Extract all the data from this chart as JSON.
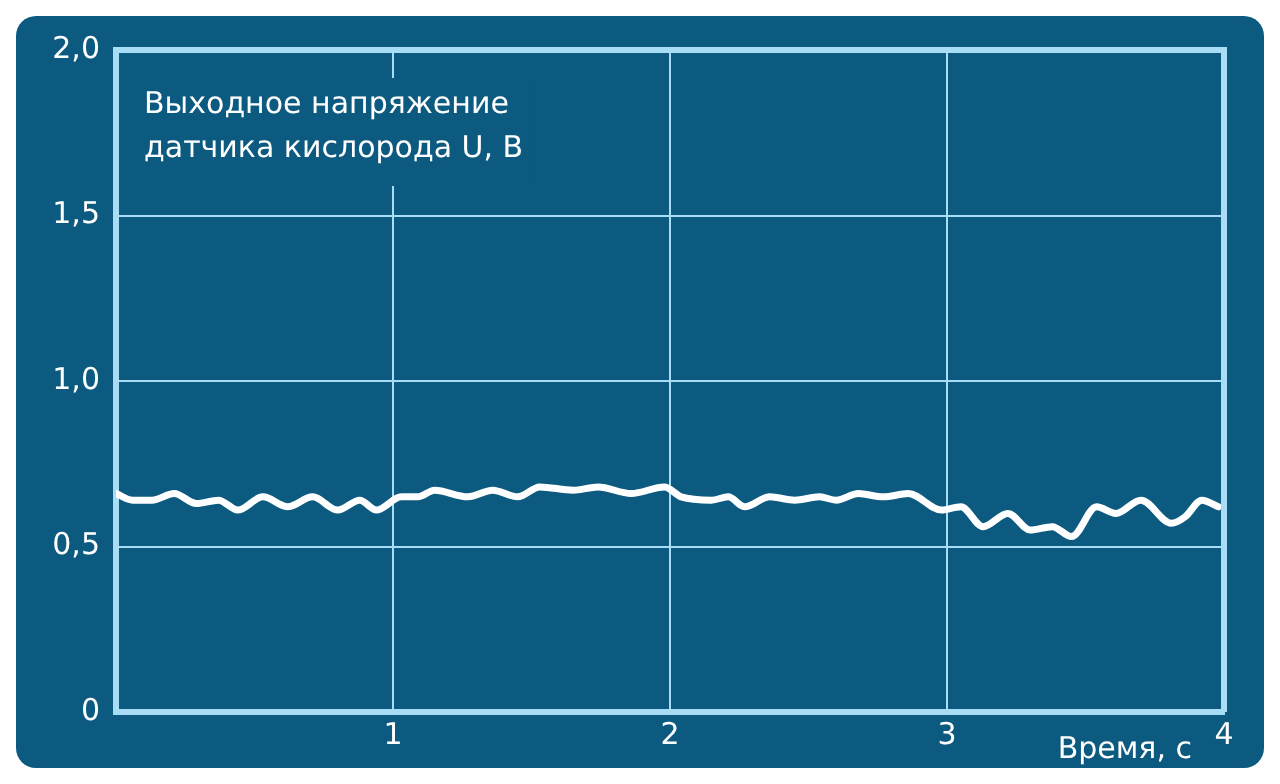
{
  "chart_data": {
    "type": "line",
    "ylabel": "Выходное напряжение датчика кислорода U, В",
    "xlabel": "Время, с",
    "x": [
      0,
      0.06,
      0.13,
      0.21,
      0.29,
      0.37,
      0.44,
      0.53,
      0.62,
      0.71,
      0.8,
      0.88,
      0.94,
      1.03,
      1.09,
      1.15,
      1.27,
      1.36,
      1.45,
      1.53,
      1.65,
      1.74,
      1.86,
      1.98,
      2.04,
      2.15,
      2.21,
      2.27,
      2.36,
      2.45,
      2.54,
      2.6,
      2.68,
      2.77,
      2.86,
      2.98,
      3.05,
      3.13,
      3.22,
      3.3,
      3.38,
      3.45,
      3.54,
      3.61,
      3.7,
      3.81,
      3.86,
      3.92,
      3.98
    ],
    "series": [
      {
        "color": "#ffffff",
        "values": [
          0.66,
          0.64,
          0.64,
          0.66,
          0.63,
          0.64,
          0.61,
          0.65,
          0.62,
          0.65,
          0.61,
          0.64,
          0.61,
          0.65,
          0.65,
          0.67,
          0.65,
          0.67,
          0.65,
          0.68,
          0.67,
          0.68,
          0.66,
          0.68,
          0.65,
          0.64,
          0.65,
          0.62,
          0.65,
          0.64,
          0.65,
          0.64,
          0.66,
          0.65,
          0.66,
          0.61,
          0.62,
          0.56,
          0.6,
          0.55,
          0.56,
          0.53,
          0.62,
          0.6,
          0.64,
          0.57,
          0.59,
          0.64,
          0.62
        ]
      }
    ],
    "xlim": [
      0,
      4
    ],
    "xticks": [
      1,
      2,
      3,
      4
    ],
    "ylim": [
      0,
      2
    ],
    "yticks": [
      {
        "value": 0,
        "label": "0"
      },
      {
        "value": 0.5,
        "label": "0,5"
      },
      {
        "value": 1,
        "label": "1,0"
      },
      {
        "value": 1.5,
        "label": "1,5"
      },
      {
        "value": 2,
        "label": "2,0"
      }
    ],
    "grid": true,
    "legend": false,
    "marker": "none",
    "line_style": "solid"
  }
}
